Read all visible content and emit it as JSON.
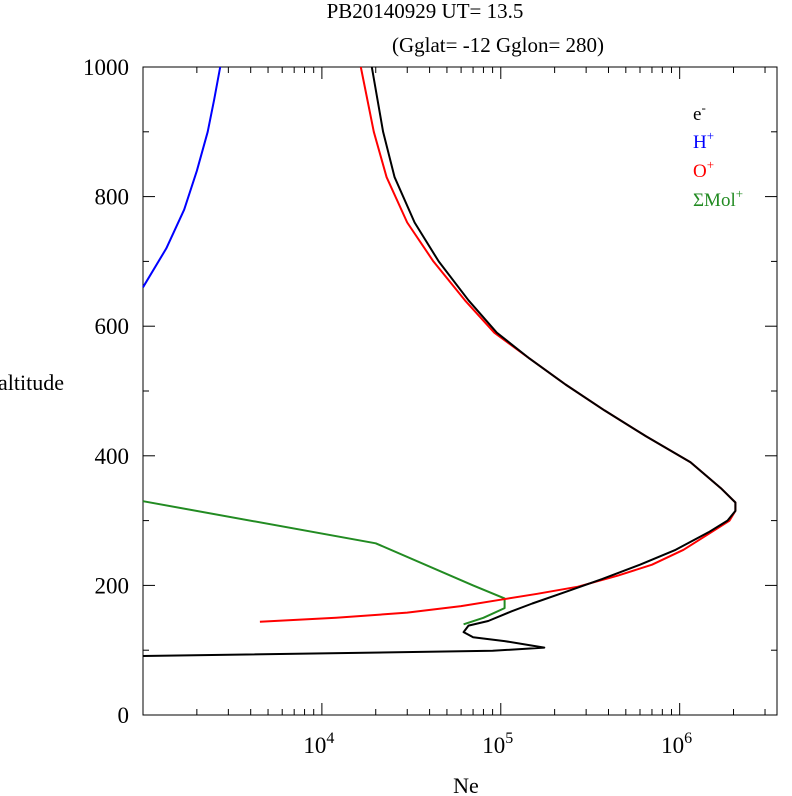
{
  "chart_data": {
    "type": "line",
    "title": "PB20140929   UT=  13.5",
    "subtitle": "(Gglat= -12   Gglon=  280)",
    "xlabel": "Ne",
    "ylabel": "altitude",
    "xscale": "log",
    "xlim": [
      1000,
      3500000
    ],
    "ylim": [
      0,
      1000
    ],
    "y_ticks": [
      0,
      200,
      400,
      600,
      800,
      1000
    ],
    "y_tick_labels": [
      "0",
      "200",
      "400",
      "600",
      "800",
      "1000"
    ],
    "x_ticks": [
      10000,
      100000,
      1000000
    ],
    "x_tick_bases": [
      "10",
      "10",
      "10"
    ],
    "x_tick_exponents": [
      "4",
      "5",
      "6"
    ],
    "legend_position": "top-right",
    "series": [
      {
        "name": "e-",
        "label_base": "e",
        "label_sup": "-",
        "color": "#000000",
        "points": [
          [
            1000,
            91
          ],
          [
            90000,
            99
          ],
          [
            175000,
            104
          ],
          [
            105000,
            114
          ],
          [
            70000,
            120
          ],
          [
            62000,
            128
          ],
          [
            66000,
            138
          ],
          [
            85000,
            145
          ],
          [
            115000,
            160
          ],
          [
            150000,
            172
          ],
          [
            230000,
            190
          ],
          [
            370000,
            210
          ],
          [
            600000,
            232
          ],
          [
            950000,
            255
          ],
          [
            1450000,
            282
          ],
          [
            1850000,
            300
          ],
          [
            2050000,
            315
          ],
          [
            2050000,
            328
          ],
          [
            1700000,
            350
          ],
          [
            1150000,
            390
          ],
          [
            650000,
            430
          ],
          [
            380000,
            470
          ],
          [
            230000,
            510
          ],
          [
            145000,
            550
          ],
          [
            95000,
            590
          ],
          [
            66000,
            640
          ],
          [
            45000,
            700
          ],
          [
            33000,
            760
          ],
          [
            25500,
            830
          ],
          [
            22000,
            900
          ],
          [
            19000,
            1000
          ]
        ]
      },
      {
        "name": "H+",
        "label_base": "H",
        "label_sup": "+",
        "color": "#0000ff",
        "points": [
          [
            1000,
            660
          ],
          [
            1350,
            720
          ],
          [
            1700,
            780
          ],
          [
            2000,
            840
          ],
          [
            2300,
            900
          ],
          [
            2500,
            950
          ],
          [
            2700,
            1000
          ]
        ]
      },
      {
        "name": "O+",
        "label_base": "O",
        "label_sup": "+",
        "color": "#ff0000",
        "points": [
          [
            4500,
            144
          ],
          [
            12000,
            150
          ],
          [
            30000,
            158
          ],
          [
            60000,
            168
          ],
          [
            100000,
            178
          ],
          [
            160000,
            187
          ],
          [
            270000,
            198
          ],
          [
            450000,
            215
          ],
          [
            700000,
            232
          ],
          [
            1050000,
            255
          ],
          [
            1500000,
            282
          ],
          [
            1900000,
            300
          ],
          [
            2050000,
            315
          ],
          [
            2050000,
            328
          ],
          [
            1700000,
            350
          ],
          [
            1150000,
            390
          ],
          [
            650000,
            430
          ],
          [
            380000,
            470
          ],
          [
            230000,
            510
          ],
          [
            145000,
            550
          ],
          [
            92000,
            590
          ],
          [
            63000,
            640
          ],
          [
            42000,
            700
          ],
          [
            30000,
            760
          ],
          [
            23000,
            830
          ],
          [
            19500,
            900
          ],
          [
            16500,
            1000
          ]
        ]
      },
      {
        "name": "ΣMol+",
        "label_base": "ΣMol",
        "label_sup": "+",
        "color": "#228b22",
        "points": [
          [
            1000,
            330
          ],
          [
            20000,
            265
          ],
          [
            70000,
            200
          ],
          [
            105000,
            180
          ],
          [
            105000,
            165
          ],
          [
            80000,
            150
          ],
          [
            62000,
            140
          ]
        ]
      }
    ]
  }
}
